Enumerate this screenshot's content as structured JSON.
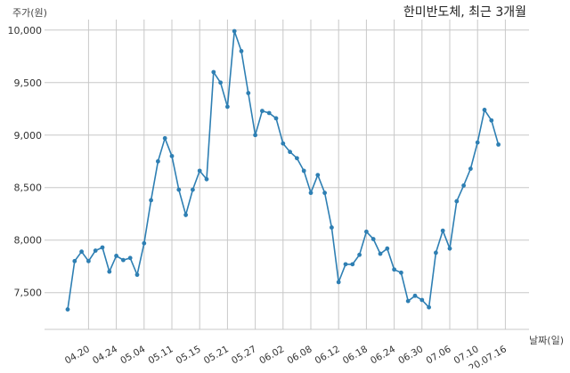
{
  "chart_data": {
    "type": "line",
    "title": "한미반도체, 최근 3개월",
    "ylabel": "주가(원)",
    "xlabel": "날짜(일)",
    "ylim": [
      7150,
      10100
    ],
    "yticks": [
      7500,
      8000,
      8500,
      9000,
      9500,
      10000
    ],
    "ytick_labels": [
      "7,500",
      "8,000",
      "8,500",
      "9,000",
      "9,500",
      "10,000"
    ],
    "xtick_labels": [
      "04.20",
      "04.24",
      "05.04",
      "05.11",
      "05.15",
      "05.21",
      "05.27",
      "06.02",
      "06.08",
      "06.12",
      "06.18",
      "06.24",
      "06.30",
      "07.06",
      "07.10",
      "20.07.16"
    ],
    "xtick_index": [
      3,
      7,
      11,
      15,
      19,
      23,
      27,
      31,
      35,
      39,
      43,
      47,
      51,
      55,
      59,
      63
    ],
    "grid": true,
    "color": "#2e7fb3",
    "series": [
      {
        "values": [
          7340,
          7800,
          7890,
          7800,
          7900,
          7930,
          7700,
          7850,
          7810,
          7830,
          7670,
          7970,
          8380,
          8750,
          8970,
          8800,
          8480,
          8240,
          8480,
          8660,
          8580,
          9600,
          9500,
          9270,
          9990,
          9800,
          9400,
          9000,
          9230,
          9210,
          9160,
          8920,
          8840,
          8780,
          8660,
          8450,
          8620,
          8450,
          8120,
          7600,
          7770,
          7770,
          7860,
          8080,
          8010,
          7870,
          7920,
          7720,
          7690,
          7420,
          7470,
          7430,
          7360,
          7880,
          8090,
          7920,
          8370,
          8520,
          8680,
          8930,
          9240,
          9140,
          8910
        ]
      }
    ]
  }
}
